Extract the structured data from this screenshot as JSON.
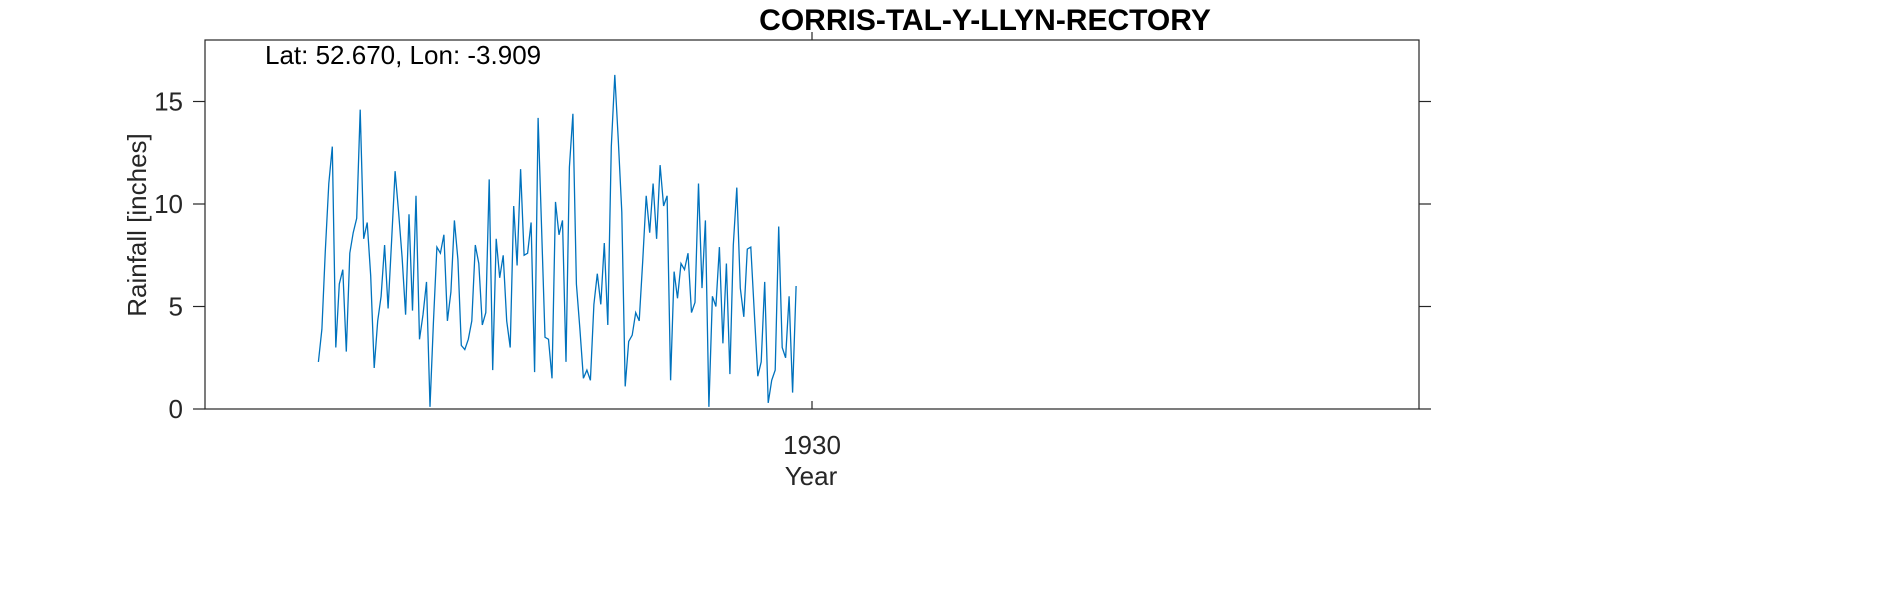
{
  "chart_data": {
    "type": "line",
    "title": "CORRIS-TAL-Y-LLYN-RECTORY",
    "annotation": "Lat: 52.670, Lon: -3.909",
    "xlabel": "Year",
    "ylabel": "Rainfall [inches]",
    "xlim": [
      1915.5,
      1944.5
    ],
    "ylim": [
      0,
      18
    ],
    "x_ticks": [
      1930
    ],
    "y_ticks": [
      0,
      5,
      10,
      15
    ],
    "grid": false,
    "color": "#0072BD",
    "series": [
      {
        "x_start": 1918.2083,
        "x_step": 0.0833,
        "values": [
          2.3,
          3.9,
          7.7,
          11.0,
          12.8,
          3.0,
          6.1,
          6.8,
          2.8,
          7.6,
          8.6,
          9.3,
          14.6,
          8.3,
          9.1,
          6.5,
          2.0,
          4.3,
          5.5,
          8.0,
          4.9,
          8.2,
          11.6,
          9.6,
          7.4,
          4.6,
          9.5,
          4.8,
          10.4,
          3.4,
          4.6,
          6.2,
          0.1,
          4.2,
          7.9,
          7.6,
          8.5,
          4.3,
          5.7,
          9.2,
          7.3,
          3.1,
          2.9,
          3.4,
          4.3,
          8.0,
          7.1,
          4.1,
          4.7,
          11.2,
          1.9,
          8.3,
          6.4,
          7.5,
          4.3,
          3.0,
          9.9,
          7.0,
          11.7,
          7.5,
          7.6,
          9.1,
          1.8,
          14.2,
          8.8,
          3.5,
          3.4,
          1.5,
          10.1,
          8.5,
          9.2,
          2.3,
          11.8,
          14.4,
          6.1,
          3.9,
          1.5,
          1.9,
          1.4,
          5.1,
          6.6,
          5.1,
          8.1,
          4.1,
          12.8,
          16.3,
          13.1,
          9.6,
          1.1,
          3.3,
          3.6,
          4.7,
          4.3,
          7.2,
          10.4,
          8.6,
          11.0,
          8.3,
          11.9,
          9.9,
          10.4,
          1.4,
          6.7,
          5.4,
          7.1,
          6.8,
          7.6,
          4.7,
          5.2,
          11.0,
          5.9,
          9.2,
          0.1,
          5.5,
          5.0,
          7.9,
          3.2,
          7.1,
          1.7,
          8.0,
          10.8,
          5.9,
          4.5,
          7.8,
          7.9,
          4.7,
          1.6,
          2.3,
          6.2,
          0.3,
          1.4,
          1.9,
          8.9,
          3.0,
          2.5,
          5.5,
          0.8,
          6.0
        ]
      }
    ]
  }
}
